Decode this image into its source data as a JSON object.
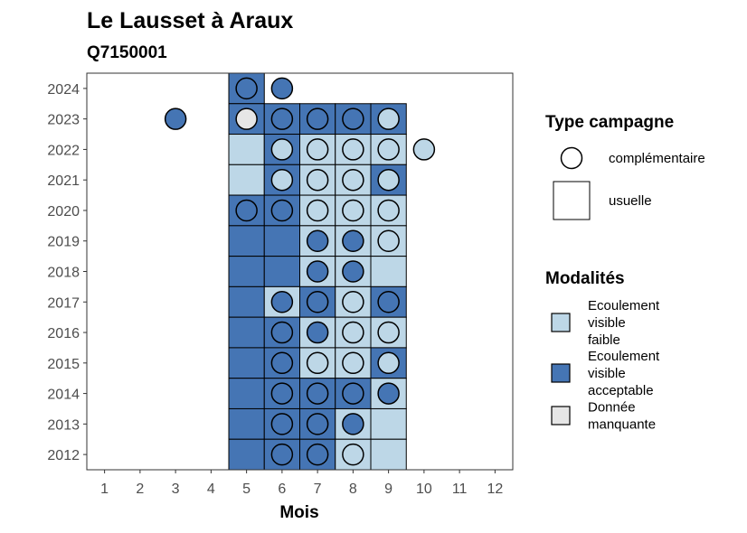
{
  "chart_data": {
    "type": "heatmap",
    "title": "Le Lausset à Araux",
    "subtitle": "Q7150001",
    "xlabel": "Mois",
    "ylabel": "",
    "x_ticks": [
      "1",
      "2",
      "3",
      "4",
      "5",
      "6",
      "7",
      "8",
      "9",
      "10",
      "11",
      "12"
    ],
    "y_ticks": [
      "2024",
      "2023",
      "2022",
      "2021",
      "2020",
      "2019",
      "2018",
      "2017",
      "2016",
      "2015",
      "2014",
      "2013",
      "2012"
    ],
    "xlim": [
      0.5,
      12.5
    ],
    "ylim": [
      2011.5,
      2024.5
    ],
    "colors": {
      "faible": "#bdd7e7",
      "acceptable": "#4575b4",
      "manquante": "#e6e6e6"
    },
    "legend_campagne": {
      "title": "Type campagne",
      "items": [
        {
          "shape": "circle",
          "label": "complémentaire"
        },
        {
          "shape": "square",
          "label": "usuelle"
        }
      ]
    },
    "legend_modalites": {
      "title": "Modalités",
      "items": [
        {
          "key": "faible",
          "lines": [
            "Ecoulement",
            "visible",
            "faible"
          ]
        },
        {
          "key": "acceptable",
          "lines": [
            "Ecoulement",
            "visible",
            "acceptable"
          ]
        },
        {
          "key": "manquante",
          "lines": [
            "Donnée",
            "manquante"
          ]
        }
      ]
    },
    "squares": [
      {
        "year": 2024,
        "month": 5,
        "mod": "acceptable"
      },
      {
        "year": 2023,
        "month": 5,
        "mod": "acceptable"
      },
      {
        "year": 2023,
        "month": 6,
        "mod": "acceptable"
      },
      {
        "year": 2023,
        "month": 7,
        "mod": "acceptable"
      },
      {
        "year": 2023,
        "month": 8,
        "mod": "acceptable"
      },
      {
        "year": 2023,
        "month": 9,
        "mod": "acceptable"
      },
      {
        "year": 2022,
        "month": 5,
        "mod": "faible"
      },
      {
        "year": 2022,
        "month": 6,
        "mod": "acceptable"
      },
      {
        "year": 2022,
        "month": 7,
        "mod": "faible"
      },
      {
        "year": 2022,
        "month": 8,
        "mod": "faible"
      },
      {
        "year": 2022,
        "month": 9,
        "mod": "faible"
      },
      {
        "year": 2021,
        "month": 5,
        "mod": "faible"
      },
      {
        "year": 2021,
        "month": 6,
        "mod": "acceptable"
      },
      {
        "year": 2021,
        "month": 7,
        "mod": "faible"
      },
      {
        "year": 2021,
        "month": 8,
        "mod": "faible"
      },
      {
        "year": 2021,
        "month": 9,
        "mod": "acceptable"
      },
      {
        "year": 2020,
        "month": 5,
        "mod": "acceptable"
      },
      {
        "year": 2020,
        "month": 6,
        "mod": "acceptable"
      },
      {
        "year": 2020,
        "month": 7,
        "mod": "faible"
      },
      {
        "year": 2020,
        "month": 8,
        "mod": "faible"
      },
      {
        "year": 2020,
        "month": 9,
        "mod": "faible"
      },
      {
        "year": 2019,
        "month": 5,
        "mod": "acceptable"
      },
      {
        "year": 2019,
        "month": 6,
        "mod": "acceptable"
      },
      {
        "year": 2019,
        "month": 7,
        "mod": "faible"
      },
      {
        "year": 2019,
        "month": 8,
        "mod": "faible"
      },
      {
        "year": 2019,
        "month": 9,
        "mod": "faible"
      },
      {
        "year": 2018,
        "month": 5,
        "mod": "acceptable"
      },
      {
        "year": 2018,
        "month": 6,
        "mod": "acceptable"
      },
      {
        "year": 2018,
        "month": 7,
        "mod": "faible"
      },
      {
        "year": 2018,
        "month": 8,
        "mod": "faible"
      },
      {
        "year": 2018,
        "month": 9,
        "mod": "faible"
      },
      {
        "year": 2017,
        "month": 5,
        "mod": "acceptable"
      },
      {
        "year": 2017,
        "month": 6,
        "mod": "faible"
      },
      {
        "year": 2017,
        "month": 7,
        "mod": "acceptable"
      },
      {
        "year": 2017,
        "month": 8,
        "mod": "faible"
      },
      {
        "year": 2017,
        "month": 9,
        "mod": "acceptable"
      },
      {
        "year": 2016,
        "month": 5,
        "mod": "acceptable"
      },
      {
        "year": 2016,
        "month": 6,
        "mod": "acceptable"
      },
      {
        "year": 2016,
        "month": 7,
        "mod": "faible"
      },
      {
        "year": 2016,
        "month": 8,
        "mod": "faible"
      },
      {
        "year": 2016,
        "month": 9,
        "mod": "faible"
      },
      {
        "year": 2015,
        "month": 5,
        "mod": "acceptable"
      },
      {
        "year": 2015,
        "month": 6,
        "mod": "acceptable"
      },
      {
        "year": 2015,
        "month": 7,
        "mod": "faible"
      },
      {
        "year": 2015,
        "month": 8,
        "mod": "faible"
      },
      {
        "year": 2015,
        "month": 9,
        "mod": "acceptable"
      },
      {
        "year": 2014,
        "month": 5,
        "mod": "acceptable"
      },
      {
        "year": 2014,
        "month": 6,
        "mod": "acceptable"
      },
      {
        "year": 2014,
        "month": 7,
        "mod": "acceptable"
      },
      {
        "year": 2014,
        "month": 8,
        "mod": "acceptable"
      },
      {
        "year": 2014,
        "month": 9,
        "mod": "faible"
      },
      {
        "year": 2013,
        "month": 5,
        "mod": "acceptable"
      },
      {
        "year": 2013,
        "month": 6,
        "mod": "acceptable"
      },
      {
        "year": 2013,
        "month": 7,
        "mod": "acceptable"
      },
      {
        "year": 2013,
        "month": 8,
        "mod": "faible"
      },
      {
        "year": 2013,
        "month": 9,
        "mod": "faible"
      },
      {
        "year": 2012,
        "month": 5,
        "mod": "acceptable"
      },
      {
        "year": 2012,
        "month": 6,
        "mod": "acceptable"
      },
      {
        "year": 2012,
        "month": 7,
        "mod": "acceptable"
      },
      {
        "year": 2012,
        "month": 8,
        "mod": "faible"
      },
      {
        "year": 2012,
        "month": 9,
        "mod": "faible"
      }
    ],
    "circles": [
      {
        "year": 2024,
        "month": 5,
        "mod": "acceptable"
      },
      {
        "year": 2024,
        "month": 6,
        "mod": "acceptable"
      },
      {
        "year": 2023,
        "month": 3,
        "mod": "acceptable"
      },
      {
        "year": 2023,
        "month": 5,
        "mod": "manquante"
      },
      {
        "year": 2023,
        "month": 6,
        "mod": "acceptable"
      },
      {
        "year": 2023,
        "month": 7,
        "mod": "acceptable"
      },
      {
        "year": 2023,
        "month": 8,
        "mod": "acceptable"
      },
      {
        "year": 2023,
        "month": 9,
        "mod": "faible"
      },
      {
        "year": 2022,
        "month": 6,
        "mod": "faible"
      },
      {
        "year": 2022,
        "month": 7,
        "mod": "faible"
      },
      {
        "year": 2022,
        "month": 8,
        "mod": "faible"
      },
      {
        "year": 2022,
        "month": 9,
        "mod": "faible"
      },
      {
        "year": 2022,
        "month": 10,
        "mod": "faible"
      },
      {
        "year": 2021,
        "month": 6,
        "mod": "faible"
      },
      {
        "year": 2021,
        "month": 7,
        "mod": "faible"
      },
      {
        "year": 2021,
        "month": 8,
        "mod": "faible"
      },
      {
        "year": 2021,
        "month": 9,
        "mod": "faible"
      },
      {
        "year": 2020,
        "month": 5,
        "mod": "acceptable"
      },
      {
        "year": 2020,
        "month": 6,
        "mod": "acceptable"
      },
      {
        "year": 2020,
        "month": 7,
        "mod": "faible"
      },
      {
        "year": 2020,
        "month": 8,
        "mod": "faible"
      },
      {
        "year": 2020,
        "month": 9,
        "mod": "faible"
      },
      {
        "year": 2019,
        "month": 7,
        "mod": "acceptable"
      },
      {
        "year": 2019,
        "month": 8,
        "mod": "acceptable"
      },
      {
        "year": 2019,
        "month": 9,
        "mod": "faible"
      },
      {
        "year": 2018,
        "month": 7,
        "mod": "acceptable"
      },
      {
        "year": 2018,
        "month": 8,
        "mod": "acceptable"
      },
      {
        "year": 2017,
        "month": 6,
        "mod": "acceptable"
      },
      {
        "year": 2017,
        "month": 7,
        "mod": "acceptable"
      },
      {
        "year": 2017,
        "month": 8,
        "mod": "faible"
      },
      {
        "year": 2017,
        "month": 9,
        "mod": "acceptable"
      },
      {
        "year": 2016,
        "month": 6,
        "mod": "acceptable"
      },
      {
        "year": 2016,
        "month": 7,
        "mod": "acceptable"
      },
      {
        "year": 2016,
        "month": 8,
        "mod": "faible"
      },
      {
        "year": 2016,
        "month": 9,
        "mod": "faible"
      },
      {
        "year": 2015,
        "month": 6,
        "mod": "acceptable"
      },
      {
        "year": 2015,
        "month": 7,
        "mod": "faible"
      },
      {
        "year": 2015,
        "month": 8,
        "mod": "faible"
      },
      {
        "year": 2015,
        "month": 9,
        "mod": "faible"
      },
      {
        "year": 2014,
        "month": 6,
        "mod": "acceptable"
      },
      {
        "year": 2014,
        "month": 7,
        "mod": "acceptable"
      },
      {
        "year": 2014,
        "month": 8,
        "mod": "acceptable"
      },
      {
        "year": 2014,
        "month": 9,
        "mod": "acceptable"
      },
      {
        "year": 2013,
        "month": 6,
        "mod": "acceptable"
      },
      {
        "year": 2013,
        "month": 7,
        "mod": "acceptable"
      },
      {
        "year": 2013,
        "month": 8,
        "mod": "acceptable"
      },
      {
        "year": 2012,
        "month": 6,
        "mod": "acceptable"
      },
      {
        "year": 2012,
        "month": 7,
        "mod": "acceptable"
      },
      {
        "year": 2012,
        "month": 8,
        "mod": "faible"
      }
    ]
  }
}
